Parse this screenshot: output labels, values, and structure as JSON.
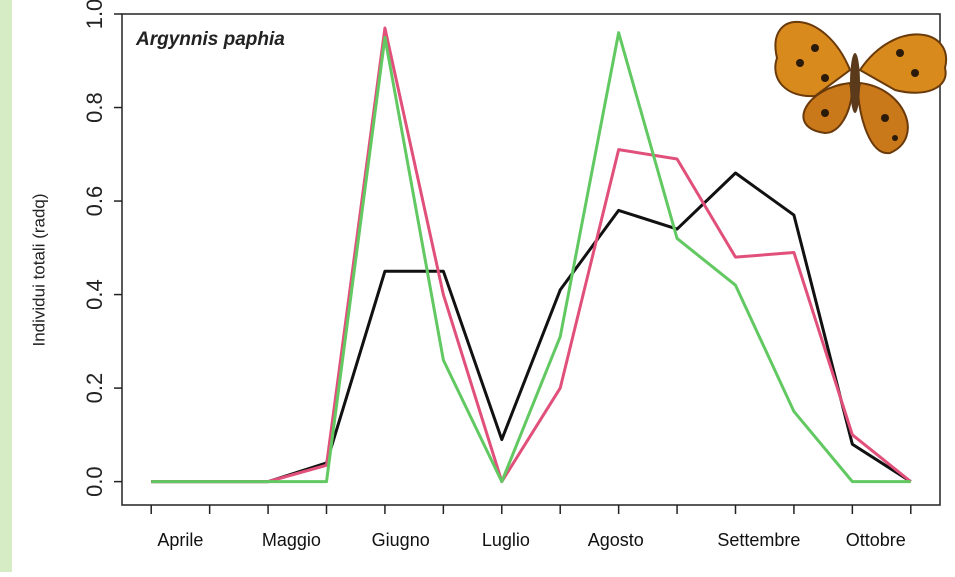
{
  "chart_data": {
    "type": "line",
    "title": "Argynnis paphia",
    "y_label": "Individui totali (radq)",
    "x": [
      1,
      2,
      3,
      4,
      5,
      6,
      7,
      8,
      9,
      10,
      11,
      12,
      13,
      14
    ],
    "xlim": [
      0.5,
      14.5
    ],
    "xticks": [
      {
        "value": 1.5,
        "label": "Aprile"
      },
      {
        "value": 3.4,
        "label": "Maggio"
      },
      {
        "value": 5.27,
        "label": "Giugno"
      },
      {
        "value": 7.07,
        "label": "Luglio"
      },
      {
        "value": 8.95,
        "label": "Agosto"
      },
      {
        "value": 11.4,
        "label": "Settembre"
      },
      {
        "value": 13.4,
        "label": "Ottobre"
      }
    ],
    "ylim": [
      -0.05,
      1.0
    ],
    "yticks": [
      {
        "value": 0,
        "label": "0.0"
      },
      0.2,
      0.4,
      0.6,
      0.8,
      {
        "value": 1,
        "label": "1.0"
      }
    ],
    "series": [
      {
        "color": "#111111",
        "values": [
          0,
          0,
          0,
          0.04,
          0.45,
          0.45,
          0.09,
          0.41,
          0.58,
          0.54,
          0.66,
          0.57,
          0.08,
          0
        ]
      },
      {
        "color": "#e0507a",
        "values": [
          0,
          0,
          0,
          0.035,
          0.97,
          0.4,
          0,
          0.2,
          0.71,
          0.69,
          0.48,
          0.49,
          0.1,
          0
        ]
      },
      {
        "color": "#62c962",
        "values": [
          0,
          0,
          0,
          0,
          0.95,
          0.26,
          0,
          0.31,
          0.96,
          0.52,
          0.42,
          0.15,
          0,
          0
        ]
      }
    ]
  }
}
